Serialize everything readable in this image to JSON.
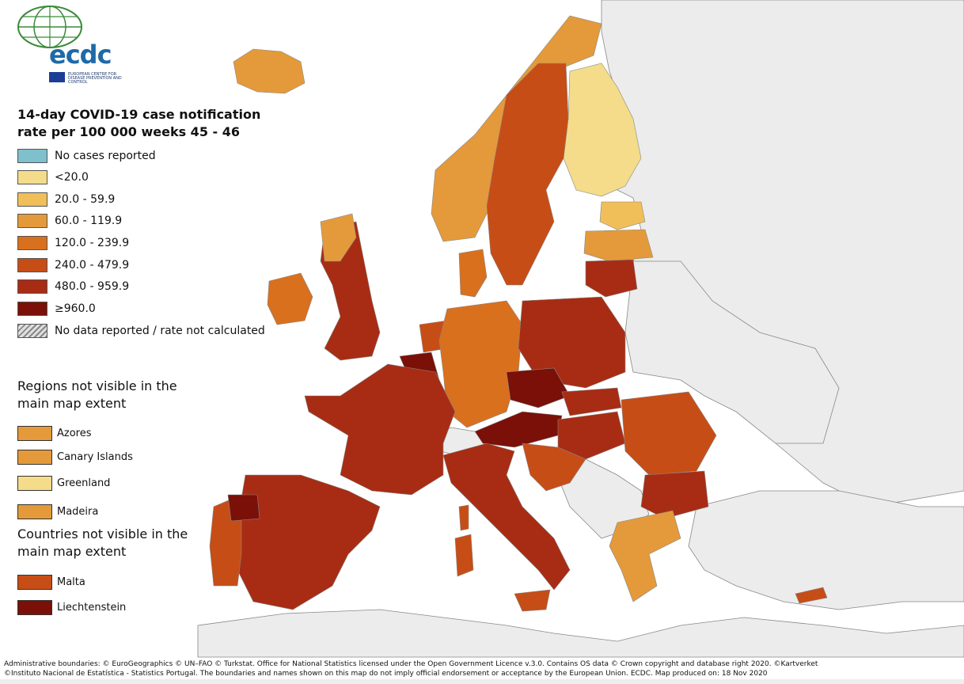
{
  "logo": {
    "text": "ecdc",
    "subtitle": "EUROPEAN CENTRE FOR DISEASE PREVENTION AND CONTROL"
  },
  "legend": {
    "title": "14-day COVID-19 case notification rate per 100 000 weeks 45 - 46",
    "items": [
      {
        "label": "No cases reported",
        "color": "#7ec0cc"
      },
      {
        "label": "<20.0",
        "color": "#f4dc8a"
      },
      {
        "label": "20.0 - 59.9",
        "color": "#f0bf5a"
      },
      {
        "label": "60.0 - 119.9",
        "color": "#e49a3a"
      },
      {
        "label": "120.0 - 239.9",
        "color": "#d9701e"
      },
      {
        "label": "240.0 - 479.9",
        "color": "#c74d16"
      },
      {
        "label": "480.0 - 959.9",
        "color": "#a82c14"
      },
      {
        "label": "≥960.0",
        "color": "#7a1008"
      },
      {
        "label": "No data reported / rate not calculated",
        "color": "hatched"
      }
    ]
  },
  "regions_not_visible": {
    "heading": "Regions not visible in the main map extent",
    "items": [
      {
        "label": "Azores",
        "color": "#e49a3a"
      },
      {
        "label": "Canary Islands",
        "color": "#e49a3a"
      },
      {
        "label": "Greenland",
        "color": "#f4dc8a"
      },
      {
        "label": "Madeira",
        "color": "#e49a3a"
      }
    ]
  },
  "countries_not_visible": {
    "heading": "Countries not visible in the main map extent",
    "items": [
      {
        "label": "Malta",
        "color": "#c74d16"
      },
      {
        "label": "Liechtenstein",
        "color": "#7a1008"
      }
    ]
  },
  "map": {
    "non_eu_color": "#ececec",
    "switzerland_color": "#ececec",
    "sea_color": "#ffffff"
  },
  "attribution": {
    "line1": "Administrative boundaries: © EuroGeographics © UN–FAO © Turkstat. Office for National Statistics licensed under the Open Government Licence v.3.0. Contains OS data © Crown copyright and database right 2020. ©Kartverket",
    "line2": "©Instituto Nacional de Estatística - Statistics Portugal. The boundaries and names shown on this map do not imply official endorsement or acceptance by the European Union. ECDC. Map produced on: 18 Nov 2020"
  }
}
